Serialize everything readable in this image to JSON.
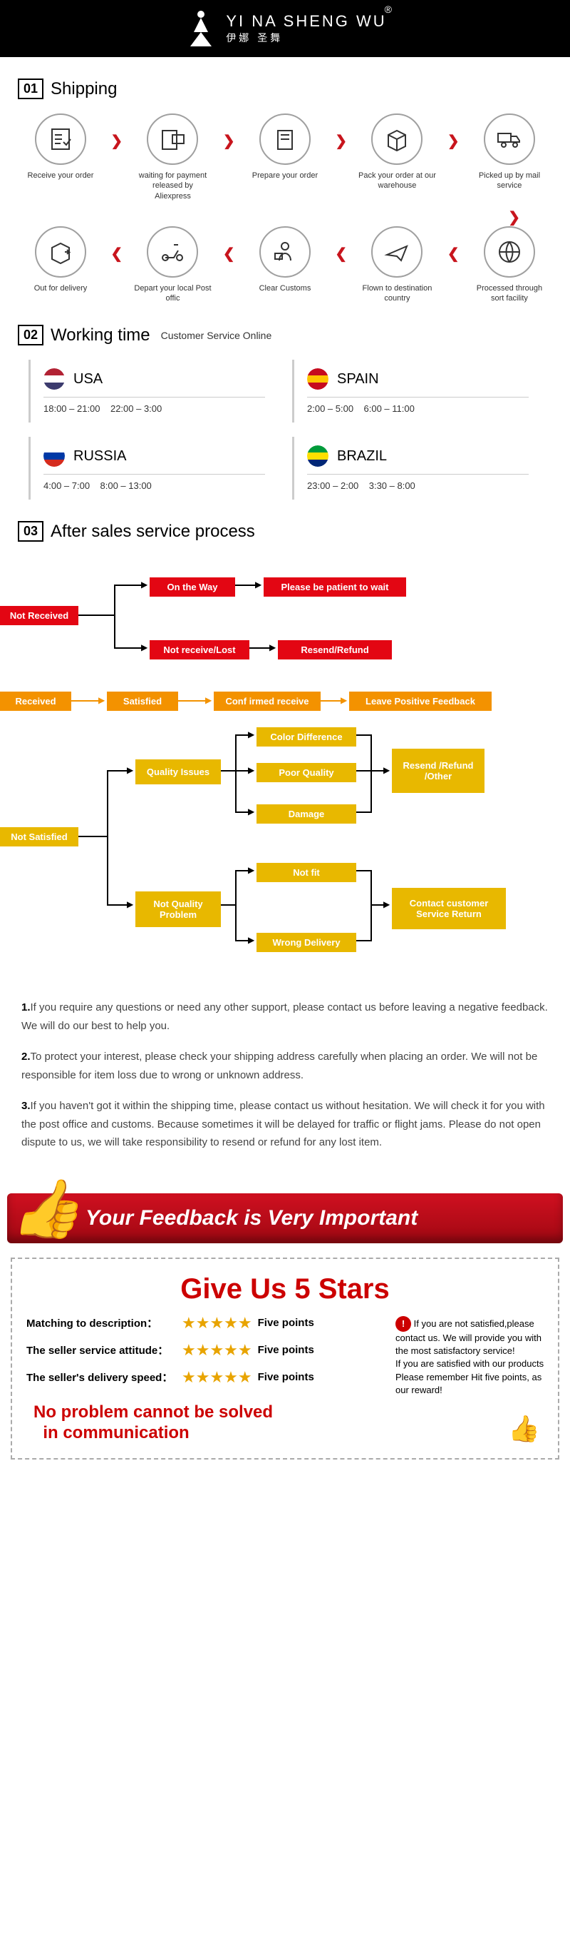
{
  "header": {
    "brand_en": "YI NA SHENG WU",
    "brand_cn": "伊娜 圣舞",
    "reg": "®"
  },
  "sections": {
    "s1": {
      "num": "01",
      "title": "Shipping"
    },
    "s2": {
      "num": "02",
      "title": "Working time",
      "sub": "Customer Service Online"
    },
    "s3": {
      "num": "03",
      "title": "After sales service process"
    }
  },
  "shipping_steps": {
    "r1": [
      "Receive your order",
      "waiting for payment released by Aliexpress",
      "Prepare your order",
      "Pack your order at our warehouse",
      "Picked up by mail service"
    ],
    "r2": [
      "Out for delivery",
      "Depart your local Post offic",
      "Clear Customs",
      "Flown to destination country",
      "Processed through sort facility"
    ]
  },
  "working_time": [
    {
      "country": "USA",
      "t1": "18:00 – 21:00",
      "t2": "22:00 – 3:00",
      "flag_colors": [
        "#b22234",
        "#ffffff",
        "#3c3b6e"
      ]
    },
    {
      "country": "SPAIN",
      "t1": "2:00 – 5:00",
      "t2": "6:00 – 11:00",
      "flag_colors": [
        "#c60b1e",
        "#ffc400",
        "#c60b1e"
      ]
    },
    {
      "country": "RUSSIA",
      "t1": "4:00 – 7:00",
      "t2": "8:00 – 13:00",
      "flag_colors": [
        "#ffffff",
        "#0039a6",
        "#d52b1e"
      ]
    },
    {
      "country": "BRAZIL",
      "t1": "23:00 – 2:00",
      "t2": "3:30 – 8:00",
      "flag_colors": [
        "#009b3a",
        "#fedf00",
        "#002776"
      ]
    }
  ],
  "aftersales": {
    "not_received": "Not Received",
    "on_the_way": "On the Way",
    "patient": "Please be patient to wait",
    "not_receive_lost": "Not receive/Lost",
    "resend_refund": "Resend/Refund",
    "received": "Received",
    "satisfied": "Satisfied",
    "confirmed": "Conf irmed receive",
    "leave_feedback": "Leave Positive Feedback",
    "not_satisfied": "Not Satisfied",
    "quality_issues": "Quality Issues",
    "color_diff": "Color Difference",
    "poor_quality": "Poor Quality",
    "damage": "Damage",
    "resend_refund_other": "Resend /Refund /Other",
    "not_quality": "Not Quality Problem",
    "not_fit": "Not fit",
    "wrong_delivery": "Wrong Delivery",
    "contact_return": "Contact customer Service Return"
  },
  "service_notes": {
    "n1b": "1.",
    "n1": "If you require any questions or need any other support, please contact us before leaving a negative feedback. We will do our best to help you.",
    "n2b": "2.",
    "n2": "To protect your interest, please check your shipping address carefully when placing an order. We will not be responsible for item loss due to wrong or unknown address.",
    "n3b": "3.",
    "n3": "If you haven't got it within the shipping time, please contact us without hesitation. We will check it for you with the post office and customs. Because sometimes it will be delayed for traffic or flight jams. Please do not open dispute to us, we will take responsibility to resend or refund for any lost item."
  },
  "feedback": {
    "banner": "Your Feedback is Very Important",
    "give": "Give Us 5 Stars",
    "rows": [
      {
        "label": "Matching to description：",
        "pts": "Five points"
      },
      {
        "label": "The seller service attitude：",
        "pts": "Five points"
      },
      {
        "label": "The seller's delivery speed：",
        "pts": "Five points"
      }
    ],
    "side": "If you are not satisfied,please contact us. We will provide you with the most satisfactory service!\nIf you are satisfied with our products\nPlease remember Hit five points, as our reward!",
    "noprob": "No problem cannot be solved\n  in communication"
  },
  "colors": {
    "red": "#e30613",
    "orange": "#f39200",
    "yellow": "#e8b800",
    "banner_grad_top": "#d01020",
    "banner_grad_bot": "#a00812"
  }
}
